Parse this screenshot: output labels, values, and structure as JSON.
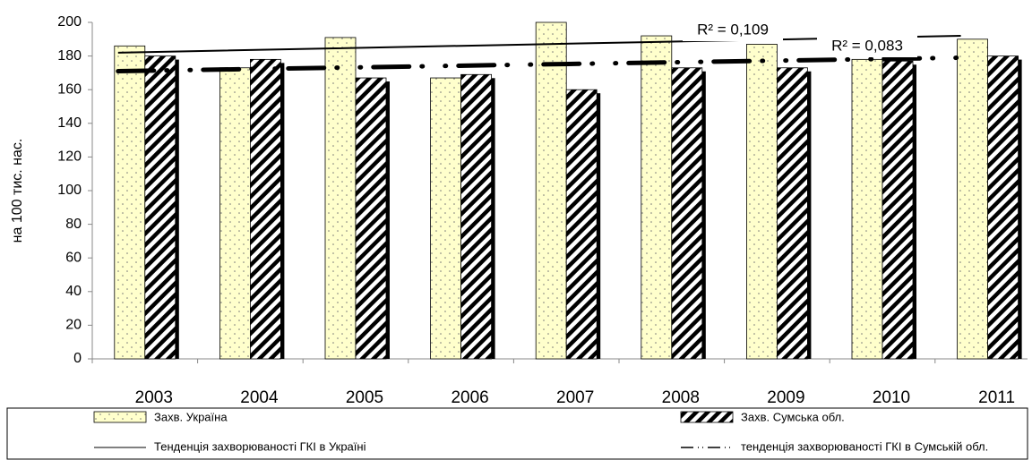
{
  "chart_data": {
    "type": "bar",
    "y_label": "на 100 тис. нас.",
    "categories": [
      "2003",
      "2004",
      "2005",
      "2006",
      "2007",
      "2008",
      "2009",
      "2010",
      "2011"
    ],
    "series": [
      {
        "name": "Захв. Україна",
        "color": "#ffffcc",
        "pattern": "dots",
        "values": [
          186,
          173,
          191,
          167,
          200,
          192,
          187,
          178,
          190
        ]
      },
      {
        "name": "Захв. Сумська обл.",
        "color": "#000000",
        "pattern": "hatch",
        "values": [
          180,
          178,
          167,
          169,
          160,
          173,
          173,
          177,
          180
        ]
      }
    ],
    "trendlines": [
      {
        "name": "Тенденція захворюваності ГКІ в Україні",
        "style": "solid",
        "values": [
          182,
          183.25,
          184.5,
          185.75,
          187,
          188.25,
          189.5,
          190.75,
          192
        ]
      },
      {
        "name": "тенденція захворюваності ГКІ в Сумській обл.",
        "style": "dashdot",
        "values": [
          171,
          172,
          173,
          174,
          175,
          176,
          177,
          178,
          179
        ]
      }
    ],
    "annotations": [
      {
        "text": "R² = 0,109"
      },
      {
        "text": "R² = 0,083"
      }
    ],
    "ylim": [
      0,
      200
    ],
    "yticks": [
      0,
      20,
      40,
      60,
      80,
      100,
      120,
      140,
      160,
      180,
      200
    ],
    "grid": false
  }
}
